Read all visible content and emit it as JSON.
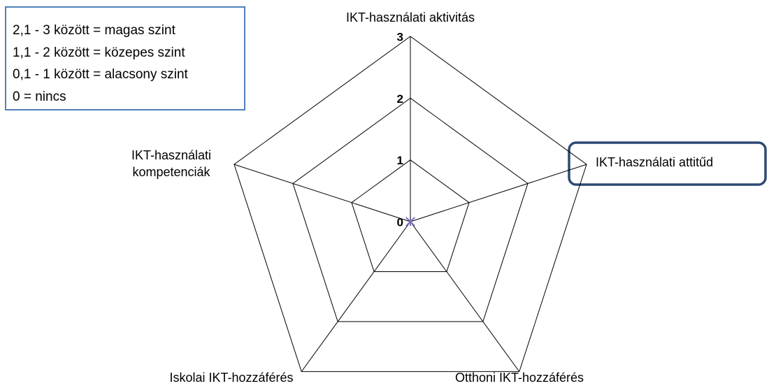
{
  "chart_data": {
    "type": "radar",
    "categories": [
      "IKT-használati aktivitás",
      "IKT-használati attitűd",
      "Otthoni IKT-hozzáférés",
      "Iskolai IKT-hozzáférés",
      "IKT-használati kompetenciák"
    ],
    "values": [
      0,
      0,
      0,
      0,
      0
    ],
    "color": "#7b6fb8",
    "ylim": [
      0,
      3
    ],
    "yticks": [
      0,
      1,
      2,
      3
    ],
    "grid": true,
    "annotations": [
      "2,1 - 3 között = magas szint",
      "1,1 - 2 között = közepes szint",
      "0,1 - 1 között = alacsony szint",
      "0 = nincs"
    ]
  }
}
